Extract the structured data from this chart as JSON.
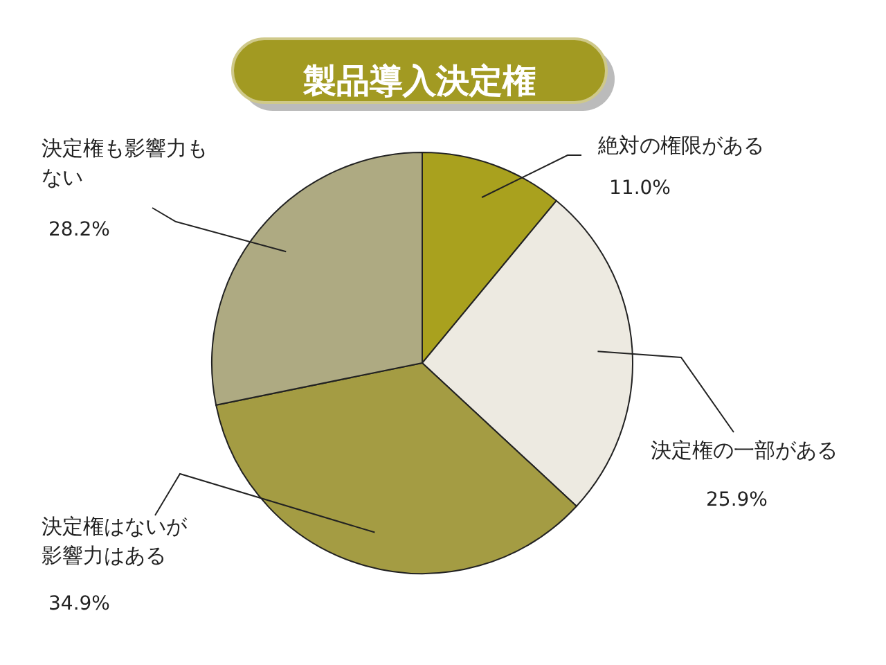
{
  "chart_data": {
    "type": "pie",
    "title": "製品導入決定権",
    "categories": [
      "絶対の権限がある",
      "決定権の一部がある",
      "決定権はないが影響力はある",
      "決定権も影響力もない"
    ],
    "values": [
      11.0,
      25.9,
      34.9,
      28.2
    ],
    "value_labels": [
      "11.0%",
      "25.9%",
      "34.9%",
      "28.2%"
    ],
    "colors": [
      "#a9a11e",
      "#edeae1",
      "#a49c43",
      "#aeaa82"
    ]
  }
}
